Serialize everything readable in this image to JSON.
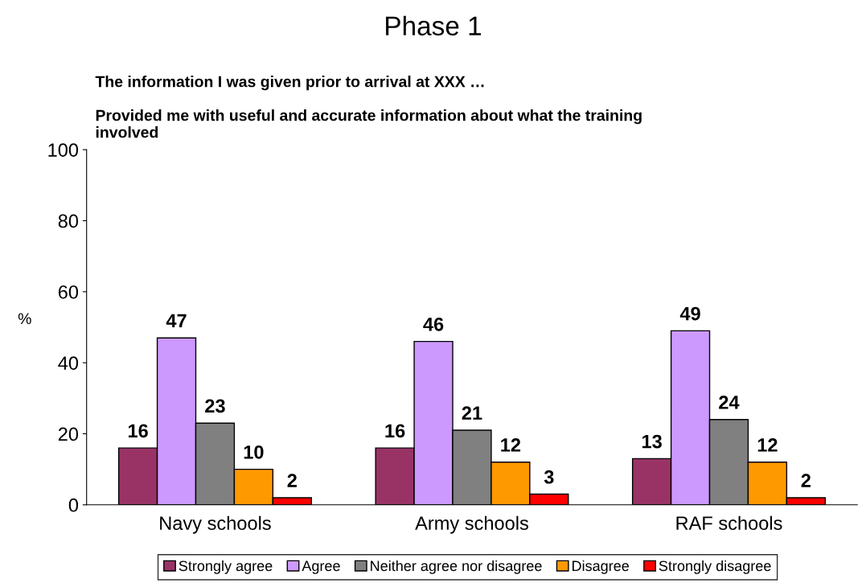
{
  "chart_data": {
    "type": "bar",
    "title": "Phase 1",
    "subtitle": "The information I was given prior to arrival at XXX …\n\nProvided me with useful and accurate information about what the training\ninvolved",
    "ylabel": "%",
    "categories": [
      "Navy schools",
      "Army schools",
      "RAF schools"
    ],
    "series": [
      {
        "name": "Strongly agree",
        "color": "#993366",
        "values": [
          16,
          16,
          13
        ]
      },
      {
        "name": "Agree",
        "color": "#cc99ff",
        "values": [
          47,
          46,
          49
        ]
      },
      {
        "name": "Neither agree nor disagree",
        "color": "#808080",
        "values": [
          23,
          21,
          24
        ]
      },
      {
        "name": "Disagree",
        "color": "#ff9900",
        "values": [
          10,
          12,
          12
        ]
      },
      {
        "name": "Strongly disagree",
        "color": "#ff0000",
        "values": [
          2,
          3,
          2
        ]
      }
    ],
    "ylim": [
      0,
      100
    ],
    "yticks": [
      0,
      20,
      40,
      60,
      80,
      100
    ],
    "grid": false,
    "legend": "bottom",
    "data_labels": true
  }
}
